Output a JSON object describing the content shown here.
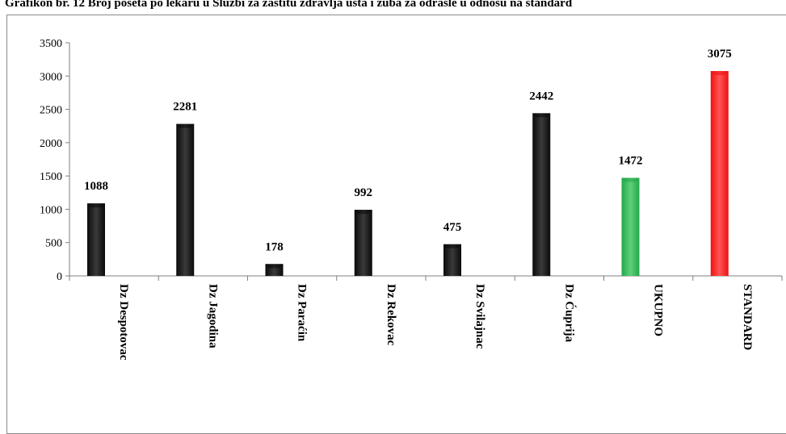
{
  "chart_data": {
    "type": "bar",
    "title": "Grafikon br. 12 Broj poseta po lekaru u Službi za zaštitu zdravlja usta i zuba za odrasle u odnosu na standard",
    "categories": [
      "Dz Despotovac",
      "Dz Jagodina",
      "Dz Paraćin",
      "Dz Rekovac",
      "Dz Svilajnac",
      "Dz Ćuprija",
      "UKUPNO",
      "STANDARD"
    ],
    "values": [
      1088,
      2281,
      178,
      992,
      475,
      2442,
      1472,
      3075
    ],
    "colors": [
      "#0a0a0a",
      "#0a0a0a",
      "#0a0a0a",
      "#0a0a0a",
      "#0a0a0a",
      "#0a0a0a",
      "#22a84a",
      "#ee1111"
    ],
    "ylim": [
      0,
      3500
    ],
    "yticks": [
      0,
      500,
      1000,
      1500,
      2000,
      2500,
      3000,
      3500
    ],
    "xlabel": "",
    "ylabel": "",
    "grid": false,
    "legend": "none",
    "data_labels": true
  }
}
